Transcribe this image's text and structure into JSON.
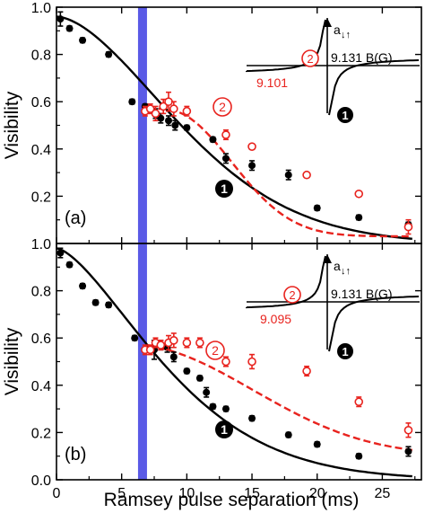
{
  "figure": {
    "xlabel": "Ramsey pulse separation (ms)",
    "ylabel": "Visibility"
  },
  "chart_data": [
    {
      "type": "scatter",
      "panel_label": "(a)",
      "xlabel": "Ramsey pulse separation (ms)",
      "ylabel": "Visibility",
      "xlim": [
        0,
        28
      ],
      "ylim": [
        0.0,
        1.0
      ],
      "x_ticks": [
        "0",
        "5",
        "10",
        "15",
        "20",
        "25"
      ],
      "y_ticks": [
        "0.0",
        "0.2",
        "0.4",
        "0.6",
        "0.8",
        "1.0"
      ],
      "highlight_x": 6.6,
      "highlight_color": "#5a5ae6",
      "series": [
        {
          "name": "1",
          "color": "#000000",
          "marker": "filled-circle",
          "fit_style": "solid",
          "x": [
            0.3,
            1.0,
            2.0,
            4.0,
            5.8,
            6.8,
            7.6,
            8.0,
            8.6,
            9.1,
            10.0,
            12.0,
            13.0,
            15.0,
            17.8,
            20.0,
            23.2,
            27.0
          ],
          "y": [
            0.95,
            0.91,
            0.86,
            0.8,
            0.6,
            0.58,
            0.55,
            0.53,
            0.52,
            0.5,
            0.49,
            0.44,
            0.36,
            0.33,
            0.29,
            0.15,
            0.11,
            0.08
          ],
          "err": [
            0.03,
            0.01,
            0.01,
            0.01,
            0.01,
            0.01,
            0.02,
            0.02,
            0.02,
            0.02,
            0.01,
            0.01,
            0.02,
            0.02,
            0.02,
            0.01,
            0.01,
            0.01
          ],
          "fit": {
            "v0": 0.96,
            "tau": 12.3,
            "p": 1.7
          }
        },
        {
          "name": "2",
          "color": "#e8231e",
          "marker": "open-circle",
          "fit_style": "dashed",
          "x": [
            6.8,
            7.2,
            7.6,
            8.2,
            8.6,
            9.0,
            10.0,
            13.0,
            15.0,
            19.2,
            23.2,
            27.0
          ],
          "y": [
            0.56,
            0.57,
            0.55,
            0.58,
            0.6,
            0.57,
            0.56,
            0.46,
            0.41,
            0.29,
            0.21,
            0.07
          ],
          "err": [
            0.02,
            0.02,
            0.03,
            0.03,
            0.04,
            0.03,
            0.02,
            0.02,
            0.01,
            0.01,
            0.01,
            0.03
          ],
          "fit": {
            "base": 0.03,
            "amp": 0.54,
            "t0": 12.0,
            "tau": 7.2,
            "p": 2.2
          }
        }
      ],
      "inset": {
        "x_label": "a",
        "state_label": "2",
        "b_label": "9.131 B(G)",
        "b_pole": "9.101"
      }
    },
    {
      "type": "scatter",
      "panel_label": "(b)",
      "xlabel": "Ramsey pulse separation (ms)",
      "ylabel": "Visibility",
      "xlim": [
        0,
        28
      ],
      "ylim": [
        0.0,
        1.0
      ],
      "x_ticks": [
        "0",
        "5",
        "10",
        "15",
        "20",
        "25"
      ],
      "y_ticks": [
        "0.0",
        "0.2",
        "0.4",
        "0.6",
        "0.8",
        "1.0"
      ],
      "highlight_x": 6.6,
      "highlight_color": "#5a5ae6",
      "series": [
        {
          "name": "1",
          "color": "#000000",
          "marker": "filled-circle",
          "fit_style": "solid",
          "x": [
            0.3,
            1.0,
            2.0,
            3.0,
            4.0,
            6.0,
            7.5,
            8.0,
            8.5,
            9.0,
            10.0,
            11.0,
            11.5,
            12.0,
            13.0,
            15.0,
            17.8,
            20.0,
            23.2,
            27.0
          ],
          "y": [
            0.96,
            0.91,
            0.82,
            0.75,
            0.74,
            0.6,
            0.55,
            0.57,
            0.56,
            0.52,
            0.46,
            0.43,
            0.37,
            0.31,
            0.3,
            0.26,
            0.19,
            0.15,
            0.1,
            0.12
          ],
          "err": [
            0.02,
            0.01,
            0.01,
            0.01,
            0.01,
            0.01,
            0.04,
            0.02,
            0.02,
            0.02,
            0.01,
            0.01,
            0.02,
            0.01,
            0.01,
            0.01,
            0.01,
            0.01,
            0.01,
            0.02
          ],
          "fit": {
            "v0": 0.98,
            "tau": 10.5,
            "p": 1.5
          }
        },
        {
          "name": "2",
          "color": "#e8231e",
          "marker": "open-circle",
          "fit_style": "dashed",
          "x": [
            6.8,
            7.2,
            7.6,
            8.0,
            8.6,
            9.0,
            10.0,
            11.0,
            13.0,
            15.0,
            19.2,
            23.2,
            27.0
          ],
          "y": [
            0.55,
            0.55,
            0.58,
            0.57,
            0.58,
            0.59,
            0.58,
            0.58,
            0.5,
            0.5,
            0.46,
            0.33,
            0.21
          ],
          "err": [
            0.02,
            0.02,
            0.02,
            0.02,
            0.03,
            0.03,
            0.02,
            0.02,
            0.02,
            0.03,
            0.02,
            0.02,
            0.03
          ],
          "fit": {
            "base": 0.1,
            "amp": 0.48,
            "t0": 8.5,
            "tau": 14.0,
            "p": 2.2
          }
        }
      ],
      "inset": {
        "x_label": "a",
        "state_label": "2",
        "b_label": "9.131 B(G)",
        "b_pole": "9.095"
      }
    }
  ]
}
